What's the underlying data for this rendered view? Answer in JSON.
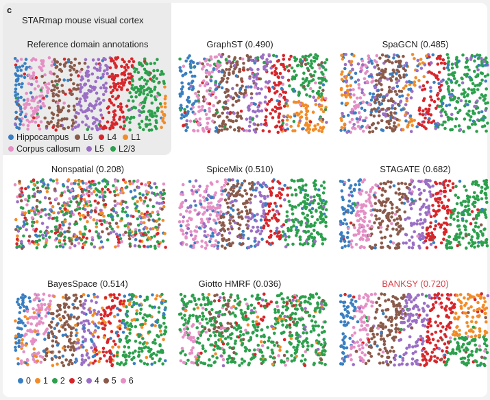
{
  "panel_letter": "c",
  "dataset_title": "STARmap mouse visual cortex",
  "panels": [
    {
      "title": "Reference domain annotations",
      "highlight": false
    },
    {
      "title": "GraphST (0.490)",
      "highlight": false
    },
    {
      "title": "SpaGCN (0.485)",
      "highlight": false
    },
    {
      "title": "Nonspatial (0.208)",
      "highlight": false
    },
    {
      "title": "SpiceMix (0.510)",
      "highlight": false
    },
    {
      "title": "STAGATE (0.682)",
      "highlight": false
    },
    {
      "title": "BayesSpace (0.514)",
      "highlight": false
    },
    {
      "title": "Giotto HMRF (0.036)",
      "highlight": false
    },
    {
      "title": "BANKSY (0.720)",
      "highlight": true
    }
  ],
  "reference_legend": [
    {
      "label": "Hippocampus",
      "color": "#3a7fc1"
    },
    {
      "label": "L6",
      "color": "#8a5a4a"
    },
    {
      "label": "L4",
      "color": "#d7262b"
    },
    {
      "label": "L1",
      "color": "#f28c28"
    },
    {
      "label": "Corpus callosum",
      "color": "#e58fc5"
    },
    {
      "label": "L5",
      "color": "#9b6fc5"
    },
    {
      "label": "L2/3",
      "color": "#2ca04c"
    }
  ],
  "cluster_legend": [
    {
      "label": "0",
      "color": "#3a7fc1"
    },
    {
      "label": "1",
      "color": "#f28c28"
    },
    {
      "label": "2",
      "color": "#2ca04c"
    },
    {
      "label": "3",
      "color": "#d7262b"
    },
    {
      "label": "4",
      "color": "#9b6fc5"
    },
    {
      "label": "5",
      "color": "#8a5a4a"
    },
    {
      "label": "6",
      "color": "#e58fc5"
    }
  ]
}
